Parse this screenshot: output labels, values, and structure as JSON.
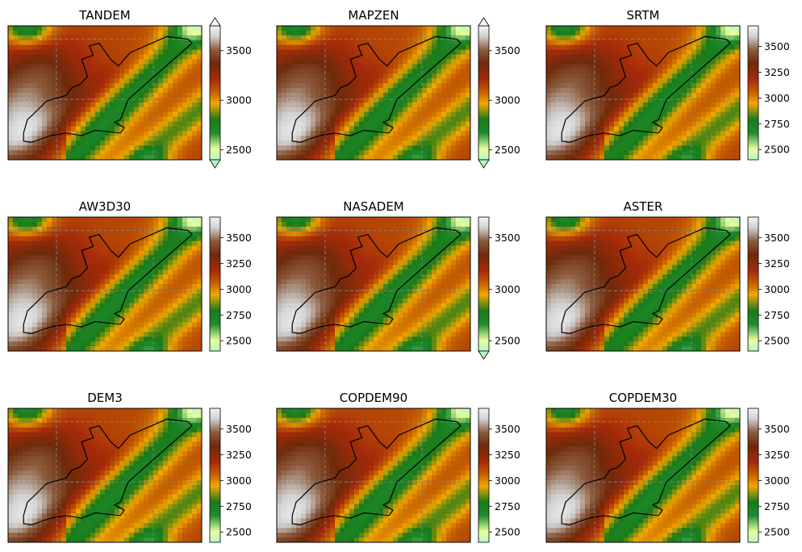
{
  "figure": {
    "layout": "3x3 grid of elevation maps",
    "colormap_stops": [
      "#b4f5c8",
      "#e9ffa0",
      "#1e8c2d",
      "#1a7a1a",
      "#f0a800",
      "#c86400",
      "#a52a0a",
      "#6e2a0a",
      "#8b5a3c",
      "#d0d0d0",
      "#f5f5f5"
    ],
    "outline_color": "#000000",
    "gridline_color": "#808080"
  },
  "chart_data": [
    {
      "type": "heatmap",
      "title": "TANDEM",
      "colorbar": {
        "ticks": [
          2500,
          3000,
          3500
        ],
        "range": [
          2400,
          3750
        ],
        "extend": "both"
      }
    },
    {
      "type": "heatmap",
      "title": "MAPZEN",
      "colorbar": {
        "ticks": [
          2500,
          3000,
          3500
        ],
        "range": [
          2400,
          3750
        ],
        "extend": "both"
      }
    },
    {
      "type": "heatmap",
      "title": "SRTM",
      "colorbar": {
        "ticks": [
          2500,
          2750,
          3000,
          3250,
          3500
        ],
        "range": [
          2400,
          3700
        ],
        "extend": "neither"
      }
    },
    {
      "type": "heatmap",
      "title": "AW3D30",
      "colorbar": {
        "ticks": [
          2500,
          2750,
          3000,
          3250,
          3500
        ],
        "range": [
          2400,
          3700
        ],
        "extend": "neither"
      }
    },
    {
      "type": "heatmap",
      "title": "NASADEM",
      "colorbar": {
        "ticks": [
          2500,
          3000,
          3500
        ],
        "range": [
          2400,
          3700
        ],
        "extend": "min"
      }
    },
    {
      "type": "heatmap",
      "title": "ASTER",
      "colorbar": {
        "ticks": [
          2500,
          2750,
          3000,
          3250,
          3500
        ],
        "range": [
          2400,
          3700
        ],
        "extend": "neither"
      }
    },
    {
      "type": "heatmap",
      "title": "DEM3",
      "colorbar": {
        "ticks": [
          2500,
          2750,
          3000,
          3250,
          3500
        ],
        "range": [
          2400,
          3700
        ],
        "extend": "neither"
      }
    },
    {
      "type": "heatmap",
      "title": "COPDEM90",
      "colorbar": {
        "ticks": [
          2500,
          2750,
          3000,
          3250,
          3500
        ],
        "range": [
          2400,
          3700
        ],
        "extend": "neither"
      }
    },
    {
      "type": "heatmap",
      "title": "COPDEM30",
      "colorbar": {
        "ticks": [
          2500,
          2750,
          3000,
          3250,
          3500
        ],
        "range": [
          2400,
          3700
        ],
        "extend": "neither"
      }
    }
  ]
}
